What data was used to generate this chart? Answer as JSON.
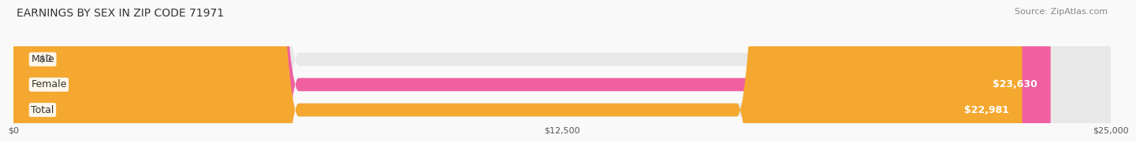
{
  "title": "EARNINGS BY SEX IN ZIP CODE 71971",
  "source": "Source: ZipAtlas.com",
  "categories": [
    "Male",
    "Female",
    "Total"
  ],
  "values": [
    0,
    23630,
    22981
  ],
  "bar_colors": [
    "#a8c8e8",
    "#f060a0",
    "#f5a830"
  ],
  "bar_bg_color": "#e8e8e8",
  "value_labels": [
    "$0",
    "$23,630",
    "$22,981"
  ],
  "xlim": [
    0,
    25000
  ],
  "xtick_values": [
    0,
    12500,
    25000
  ],
  "xtick_labels": [
    "$0",
    "$12,500",
    "$25,000"
  ],
  "title_fontsize": 10,
  "source_fontsize": 8,
  "label_fontsize": 9,
  "value_fontsize": 9,
  "bar_height": 0.52,
  "background_color": "#f9f9f9"
}
